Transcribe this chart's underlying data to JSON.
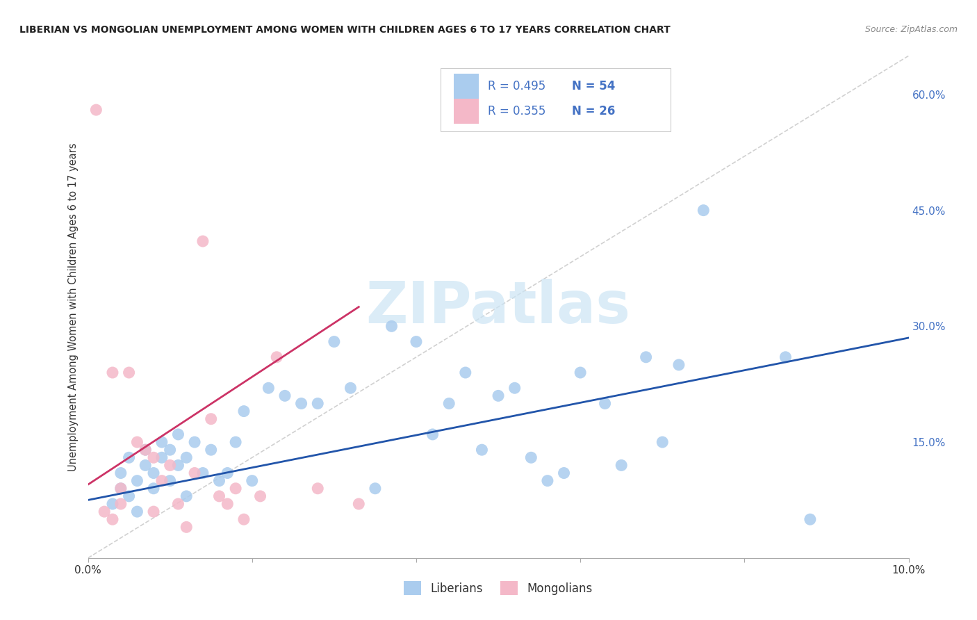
{
  "title": "LIBERIAN VS MONGOLIAN UNEMPLOYMENT AMONG WOMEN WITH CHILDREN AGES 6 TO 17 YEARS CORRELATION CHART",
  "source": "Source: ZipAtlas.com",
  "ylabel": "Unemployment Among Women with Children Ages 6 to 17 years",
  "xlim": [
    0.0,
    0.1
  ],
  "ylim": [
    0.0,
    0.65
  ],
  "x_tick_pos": [
    0.0,
    0.02,
    0.04,
    0.06,
    0.08,
    0.1
  ],
  "x_tick_labels": [
    "0.0%",
    "",
    "",
    "",
    "",
    "10.0%"
  ],
  "y_tick_pos": [
    0.0,
    0.15,
    0.3,
    0.45,
    0.6
  ],
  "y_tick_labels": [
    "",
    "15.0%",
    "30.0%",
    "45.0%",
    "60.0%"
  ],
  "blue_color": "#aaccee",
  "pink_color": "#f4b8c8",
  "blue_line_color": "#2255aa",
  "pink_line_color": "#cc3366",
  "diagonal_color": "#cccccc",
  "right_axis_color": "#4472c4",
  "blue_scatter_x": [
    0.003,
    0.004,
    0.004,
    0.005,
    0.005,
    0.006,
    0.006,
    0.007,
    0.007,
    0.008,
    0.008,
    0.009,
    0.009,
    0.01,
    0.01,
    0.011,
    0.011,
    0.012,
    0.012,
    0.013,
    0.014,
    0.015,
    0.016,
    0.017,
    0.018,
    0.019,
    0.02,
    0.022,
    0.024,
    0.026,
    0.028,
    0.03,
    0.032,
    0.035,
    0.037,
    0.04,
    0.042,
    0.044,
    0.046,
    0.048,
    0.05,
    0.052,
    0.054,
    0.056,
    0.058,
    0.06,
    0.063,
    0.065,
    0.068,
    0.07,
    0.072,
    0.075,
    0.085,
    0.088
  ],
  "blue_scatter_y": [
    0.07,
    0.09,
    0.11,
    0.08,
    0.13,
    0.06,
    0.1,
    0.12,
    0.14,
    0.09,
    0.11,
    0.13,
    0.15,
    0.1,
    0.14,
    0.12,
    0.16,
    0.13,
    0.08,
    0.15,
    0.11,
    0.14,
    0.1,
    0.11,
    0.15,
    0.19,
    0.1,
    0.22,
    0.21,
    0.2,
    0.2,
    0.28,
    0.22,
    0.09,
    0.3,
    0.28,
    0.16,
    0.2,
    0.24,
    0.14,
    0.21,
    0.22,
    0.13,
    0.1,
    0.11,
    0.24,
    0.2,
    0.12,
    0.26,
    0.15,
    0.25,
    0.45,
    0.26,
    0.05
  ],
  "pink_scatter_x": [
    0.001,
    0.002,
    0.003,
    0.003,
    0.004,
    0.004,
    0.005,
    0.006,
    0.007,
    0.008,
    0.008,
    0.009,
    0.01,
    0.011,
    0.012,
    0.013,
    0.014,
    0.015,
    0.016,
    0.017,
    0.018,
    0.019,
    0.021,
    0.023,
    0.028,
    0.033
  ],
  "pink_scatter_y": [
    0.58,
    0.06,
    0.24,
    0.05,
    0.07,
    0.09,
    0.24,
    0.15,
    0.14,
    0.13,
    0.06,
    0.1,
    0.12,
    0.07,
    0.04,
    0.11,
    0.41,
    0.18,
    0.08,
    0.07,
    0.09,
    0.05,
    0.08,
    0.26,
    0.09,
    0.07
  ],
  "blue_trend_x": [
    0.0,
    0.1
  ],
  "blue_trend_y": [
    0.075,
    0.285
  ],
  "pink_trend_x": [
    0.0,
    0.033
  ],
  "pink_trend_y": [
    0.095,
    0.325
  ],
  "background_color": "#ffffff",
  "grid_color": "#dddddd",
  "watermark_text": "ZIPatlas",
  "watermark_color": "#cce5f5",
  "legend_r_color": "#4472c4",
  "legend_n_color": "#4472c4",
  "legend_blue_r": "R = 0.495",
  "legend_blue_n": "N = 54",
  "legend_pink_r": "R = 0.355",
  "legend_pink_n": "N = 26",
  "bottom_legend_labels": [
    "Liberians",
    "Mongolians"
  ]
}
